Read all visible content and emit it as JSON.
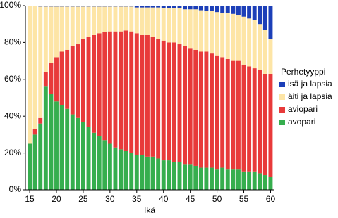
{
  "chart_data": {
    "type": "stacked-bar",
    "x_label": "Ikä",
    "legend_title": "Perhetyyppi",
    "legend": "right",
    "x": [
      15,
      16,
      17,
      18,
      19,
      20,
      21,
      22,
      23,
      24,
      25,
      26,
      27,
      28,
      29,
      30,
      31,
      32,
      33,
      34,
      35,
      36,
      37,
      38,
      39,
      40,
      41,
      42,
      43,
      44,
      45,
      46,
      47,
      48,
      49,
      50,
      51,
      52,
      53,
      54,
      55,
      56,
      57,
      58,
      59,
      60
    ],
    "xlim": [
      14.2,
      60.6
    ],
    "xticks": [
      15,
      20,
      25,
      30,
      35,
      40,
      45,
      50,
      55,
      60
    ],
    "ylim": [
      0,
      100
    ],
    "yticks": [
      {
        "value": 0,
        "label": "0%"
      },
      {
        "value": 20,
        "label": "20%"
      },
      {
        "value": 40,
        "label": "40%"
      },
      {
        "value": 60,
        "label": "60%"
      },
      {
        "value": 80,
        "label": "80%"
      },
      {
        "value": 100,
        "label": "100%"
      }
    ],
    "series": [
      {
        "name": "avopari",
        "color": "#36ae4e",
        "values": [
          25,
          30,
          36,
          56,
          52,
          48,
          46,
          44,
          41,
          39,
          37,
          34,
          31,
          29,
          27,
          25,
          23,
          22,
          21,
          20,
          19,
          19,
          18,
          18,
          17,
          16,
          16,
          15,
          15,
          14,
          14,
          13,
          12,
          12,
          12,
          11,
          12,
          11,
          11,
          11,
          10,
          10,
          10,
          9,
          8,
          7
        ]
      },
      {
        "name": "aviopari",
        "color": "#e83a3a",
        "values": [
          0,
          3,
          3,
          8,
          17,
          24,
          29,
          32,
          37,
          40,
          45,
          49,
          53,
          56,
          58.5,
          61,
          63,
          64,
          65.5,
          66,
          66,
          65,
          66,
          65,
          65,
          65,
          64,
          65,
          64,
          64,
          63,
          63,
          63,
          63,
          62,
          62,
          60,
          60,
          59,
          59,
          58,
          57,
          56,
          56,
          55,
          56
        ]
      },
      {
        "name": "äiti ja lapsia",
        "color": "#fde5a6",
        "values": [
          75,
          67,
          60.5,
          35.5,
          30.5,
          27.5,
          24.5,
          23.5,
          21.5,
          20.5,
          17.5,
          16.5,
          15.5,
          14.5,
          14,
          13.5,
          13.5,
          13.5,
          13,
          13.5,
          14,
          15,
          15,
          16,
          17,
          17.5,
          18.5,
          18.5,
          19.5,
          20,
          21,
          22,
          22.5,
          22,
          23,
          23.5,
          24,
          25,
          25.5,
          25,
          26,
          26,
          26,
          25,
          24,
          19
        ]
      },
      {
        "name": "isä ja lapsia",
        "color": "#1c3fb8",
        "values": [
          0,
          0,
          0.5,
          0.5,
          0.5,
          0.5,
          0.5,
          0.5,
          0.5,
          0.5,
          0.5,
          0.5,
          0.5,
          0.5,
          0.5,
          0.5,
          0.5,
          0.5,
          0.5,
          0.5,
          1,
          1,
          1,
          1,
          1,
          1.5,
          1.5,
          1.5,
          1.5,
          2,
          2,
          2,
          2.5,
          3,
          3,
          3.5,
          4,
          4,
          4.5,
          5,
          6,
          7,
          8,
          10,
          13,
          18
        ]
      }
    ]
  }
}
